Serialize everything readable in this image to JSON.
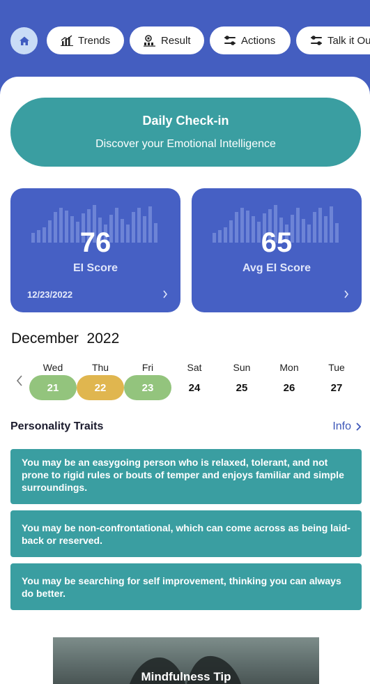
{
  "nav": {
    "home_icon": "home-icon",
    "pills": [
      {
        "label": "Trends",
        "icon": "bar-chart-icon"
      },
      {
        "label": "Result",
        "icon": "result-icon"
      },
      {
        "label": "Actions",
        "icon": "sliders-icon"
      },
      {
        "label": "Talk it Out",
        "icon": "sliders-icon"
      }
    ]
  },
  "checkin": {
    "title": "Daily Check-in",
    "subtitle": "Discover your Emotional Intelligence"
  },
  "cards": [
    {
      "score": "76",
      "label": "EI Score",
      "date": "12/23/2022"
    },
    {
      "score": "65",
      "label": "Avg EI Score",
      "date": ""
    }
  ],
  "calendar": {
    "month": "December",
    "year": "2022",
    "days": [
      {
        "name": "Wed",
        "num": "21",
        "color": "#93c47d"
      },
      {
        "name": "Thu",
        "num": "22",
        "color": "#e0b64f"
      },
      {
        "name": "Fri",
        "num": "23",
        "color": "#93c47d"
      },
      {
        "name": "Sat",
        "num": "24",
        "color": ""
      },
      {
        "name": "Sun",
        "num": "25",
        "color": ""
      },
      {
        "name": "Mon",
        "num": "26",
        "color": ""
      },
      {
        "name": "Tue",
        "num": "27",
        "color": ""
      }
    ]
  },
  "traits": {
    "title": "Personality Traits",
    "info_label": "Info",
    "items": [
      "You may be an easygoing person who is relaxed, tolerant, and not prone to rigid rules or bouts of temper and enjoys familiar and simple surroundings.",
      "You may be non-confrontational, which can come across as being laid-back or reserved.",
      "You may be searching for self improvement, thinking you can always do better."
    ]
  },
  "tip": {
    "title": "Mindfulness Tip"
  },
  "colors": {
    "header": "#445ec0",
    "teal": "#3a9ea1",
    "card": "#4660c4",
    "green": "#93c47d",
    "yellow": "#e0b64f"
  }
}
